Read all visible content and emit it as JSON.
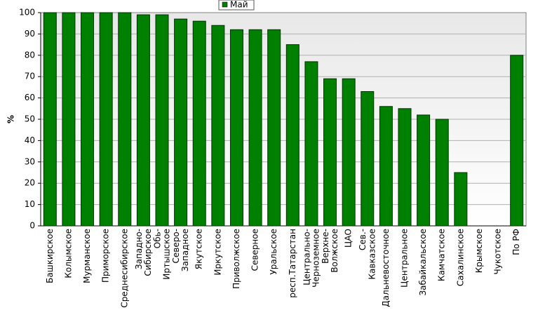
{
  "chart_data": {
    "type": "bar",
    "y_label": "%",
    "categories": [
      "Башкирское",
      "Колымское",
      "Мурманское",
      "Приморское",
      "Среднесибирское",
      "Западно-\nСибирское",
      "Обь-\nИртышское",
      "Северо-\nЗападное",
      "Якутское",
      "Иркутское",
      "Приволжское",
      "Северное",
      "Уральское",
      "респ.Татарстан",
      "Центрально-\nЧерноземное",
      "Верхне-\nВолжское",
      "ЦАО",
      "Сев.-\nКавказское",
      "Дальневосточное",
      "Центральное",
      "Забайкальское",
      "Камчатское",
      "Сахалинское",
      "Крымское",
      "Чукотское",
      "По РФ"
    ],
    "series": [
      {
        "name": "Май",
        "color": "#008000",
        "values": [
          100,
          100,
          100,
          100,
          100,
          99,
          99,
          97,
          96,
          94,
          92,
          92,
          92,
          85,
          77,
          69,
          69,
          63,
          56,
          55,
          52,
          50,
          25,
          0,
          0,
          80
        ]
      }
    ],
    "ylim": [
      0,
      100
    ],
    "yticks": [
      0,
      10,
      20,
      30,
      40,
      50,
      60,
      70,
      80,
      90,
      100
    ],
    "grid": true,
    "legend": "top"
  }
}
